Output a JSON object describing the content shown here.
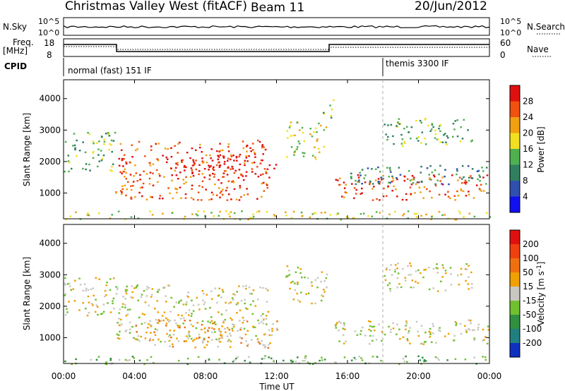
{
  "header": {
    "station": "Christmas Valley West (fitACF)",
    "beam": "Beam 11",
    "date": "20/Jun/2012"
  },
  "nsky_panel": {
    "left_label": "N.Sky",
    "right_label": "N.Search",
    "left_ticks": [
      "10^5",
      "10^0"
    ],
    "right_ticks": [
      "10^5",
      "10^0"
    ]
  },
  "freq_panel": {
    "left_label_1": "Freq.",
    "left_label_2": "[MHz]",
    "right_label": "Nave",
    "left_ticks": [
      "18",
      "8"
    ],
    "right_ticks": [
      "60",
      "0"
    ]
  },
  "cpid_panel": {
    "label": "CPID",
    "modes": [
      {
        "name": "normal (fast) 151 IF",
        "start_hour": 0
      },
      {
        "name": "themis 3300 IF",
        "start_hour": 18
      }
    ]
  },
  "x_axis": {
    "label": "Time UT",
    "ticks": [
      "00:00",
      "04:00",
      "08:00",
      "12:00",
      "16:00",
      "20:00",
      "00:00"
    ],
    "range_hours": [
      0,
      24
    ]
  },
  "y_axis": {
    "label": "Slant Range [km]",
    "ticks": [
      "1000",
      "2000",
      "3000",
      "4000"
    ],
    "range_km": [
      180,
      4600
    ]
  },
  "power_colorbar": {
    "title": "Power [dB]",
    "ticks": [
      "4",
      "8",
      "12",
      "16",
      "20",
      "24",
      "28"
    ],
    "colors": [
      "#1010f0",
      "#3050b0",
      "#308060",
      "#50b050",
      "#f0e020",
      "#f0a010",
      "#f05010",
      "#e01010"
    ]
  },
  "velocity_colorbar": {
    "title": "Velocity [m s",
    "title_sup": "-1",
    "title_end": "]",
    "ticks": [
      "200",
      "100",
      "50",
      "15",
      "-15",
      "-50",
      "-100",
      "-200"
    ],
    "colors": [
      "#1030c0",
      "#208080",
      "#309040",
      "#70c030",
      "#c8c8c0",
      "#f0a000",
      "#f07010",
      "#f04010",
      "#e01010"
    ]
  },
  "chart_data": [
    {
      "type": "heatmap",
      "name": "Power",
      "x_unit": "hours UT",
      "y_unit": "km",
      "regions": [
        {
          "t0": 0.0,
          "t1": 2.9,
          "r0": 1700,
          "r1": 2950,
          "level": 3
        },
        {
          "t0": 2.9,
          "t1": 11.5,
          "r0": 800,
          "r1": 2700,
          "level": 6
        },
        {
          "t0": 6.0,
          "t1": 12.0,
          "r0": 1500,
          "r1": 2200,
          "level": 7
        },
        {
          "t0": 12.5,
          "t1": 14.8,
          "r0": 2100,
          "r1": 3300,
          "level": 4
        },
        {
          "t0": 14.5,
          "t1": 15.2,
          "r0": 3400,
          "r1": 4000,
          "level": 3
        },
        {
          "t0": 15.2,
          "t1": 24.0,
          "r0": 800,
          "r1": 1600,
          "level": 6
        },
        {
          "t0": 16.0,
          "t1": 24.0,
          "r0": 1300,
          "r1": 1900,
          "level": 2
        },
        {
          "t0": 18.0,
          "t1": 23.0,
          "r0": 2500,
          "r1": 3400,
          "level": 3
        },
        {
          "t0": 0.0,
          "t1": 24.0,
          "r0": 180,
          "r1": 450,
          "level": 4
        }
      ]
    },
    {
      "type": "heatmap",
      "name": "Velocity",
      "x_unit": "hours UT",
      "y_unit": "km",
      "regions": [
        {
          "t0": 0.0,
          "t1": 2.9,
          "r0": 1700,
          "r1": 2950,
          "level": 4
        },
        {
          "t0": 2.9,
          "t1": 11.5,
          "r0": 900,
          "r1": 2700,
          "level": 4
        },
        {
          "t0": 4.0,
          "t1": 12.0,
          "r0": 700,
          "r1": 1600,
          "level": 5
        },
        {
          "t0": 12.5,
          "t1": 14.8,
          "r0": 2100,
          "r1": 3300,
          "level": 4
        },
        {
          "t0": 15.2,
          "t1": 24.0,
          "r0": 800,
          "r1": 1600,
          "level": 4
        },
        {
          "t0": 18.0,
          "t1": 23.0,
          "r0": 2500,
          "r1": 3400,
          "level": 4
        },
        {
          "t0": 0.0,
          "t1": 24.0,
          "r0": 180,
          "r1": 450,
          "level": 3
        }
      ]
    }
  ]
}
